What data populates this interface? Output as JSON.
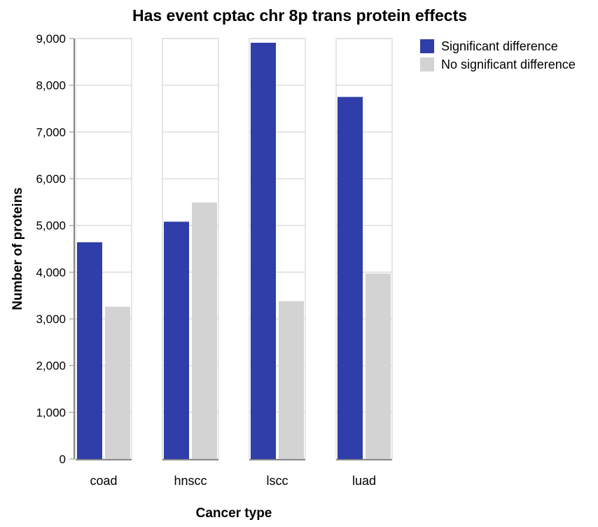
{
  "chart_data": {
    "type": "bar",
    "title": "Has event cptac chr 8p trans protein effects",
    "xlabel": "Cancer type",
    "ylabel": "Number of proteins",
    "categories": [
      "coad",
      "hnscc",
      "lscc",
      "luad"
    ],
    "series": [
      {
        "name": "Significant difference",
        "color": "#2f3ea8",
        "values": [
          4640,
          5080,
          8910,
          7750
        ]
      },
      {
        "name": "No significant difference",
        "color": "#d3d3d3",
        "values": [
          3260,
          5490,
          3380,
          3970
        ]
      }
    ],
    "ylim": [
      0,
      9000
    ],
    "yticks": [
      0,
      1000,
      2000,
      3000,
      4000,
      5000,
      6000,
      7000,
      8000,
      9000
    ],
    "ytick_labels": [
      "0",
      "1,000",
      "2,000",
      "3,000",
      "4,000",
      "5,000",
      "6,000",
      "7,000",
      "8,000",
      "9,000"
    ],
    "grid": true,
    "legend": "top-right",
    "layout": "faceted columns per cancer type"
  }
}
